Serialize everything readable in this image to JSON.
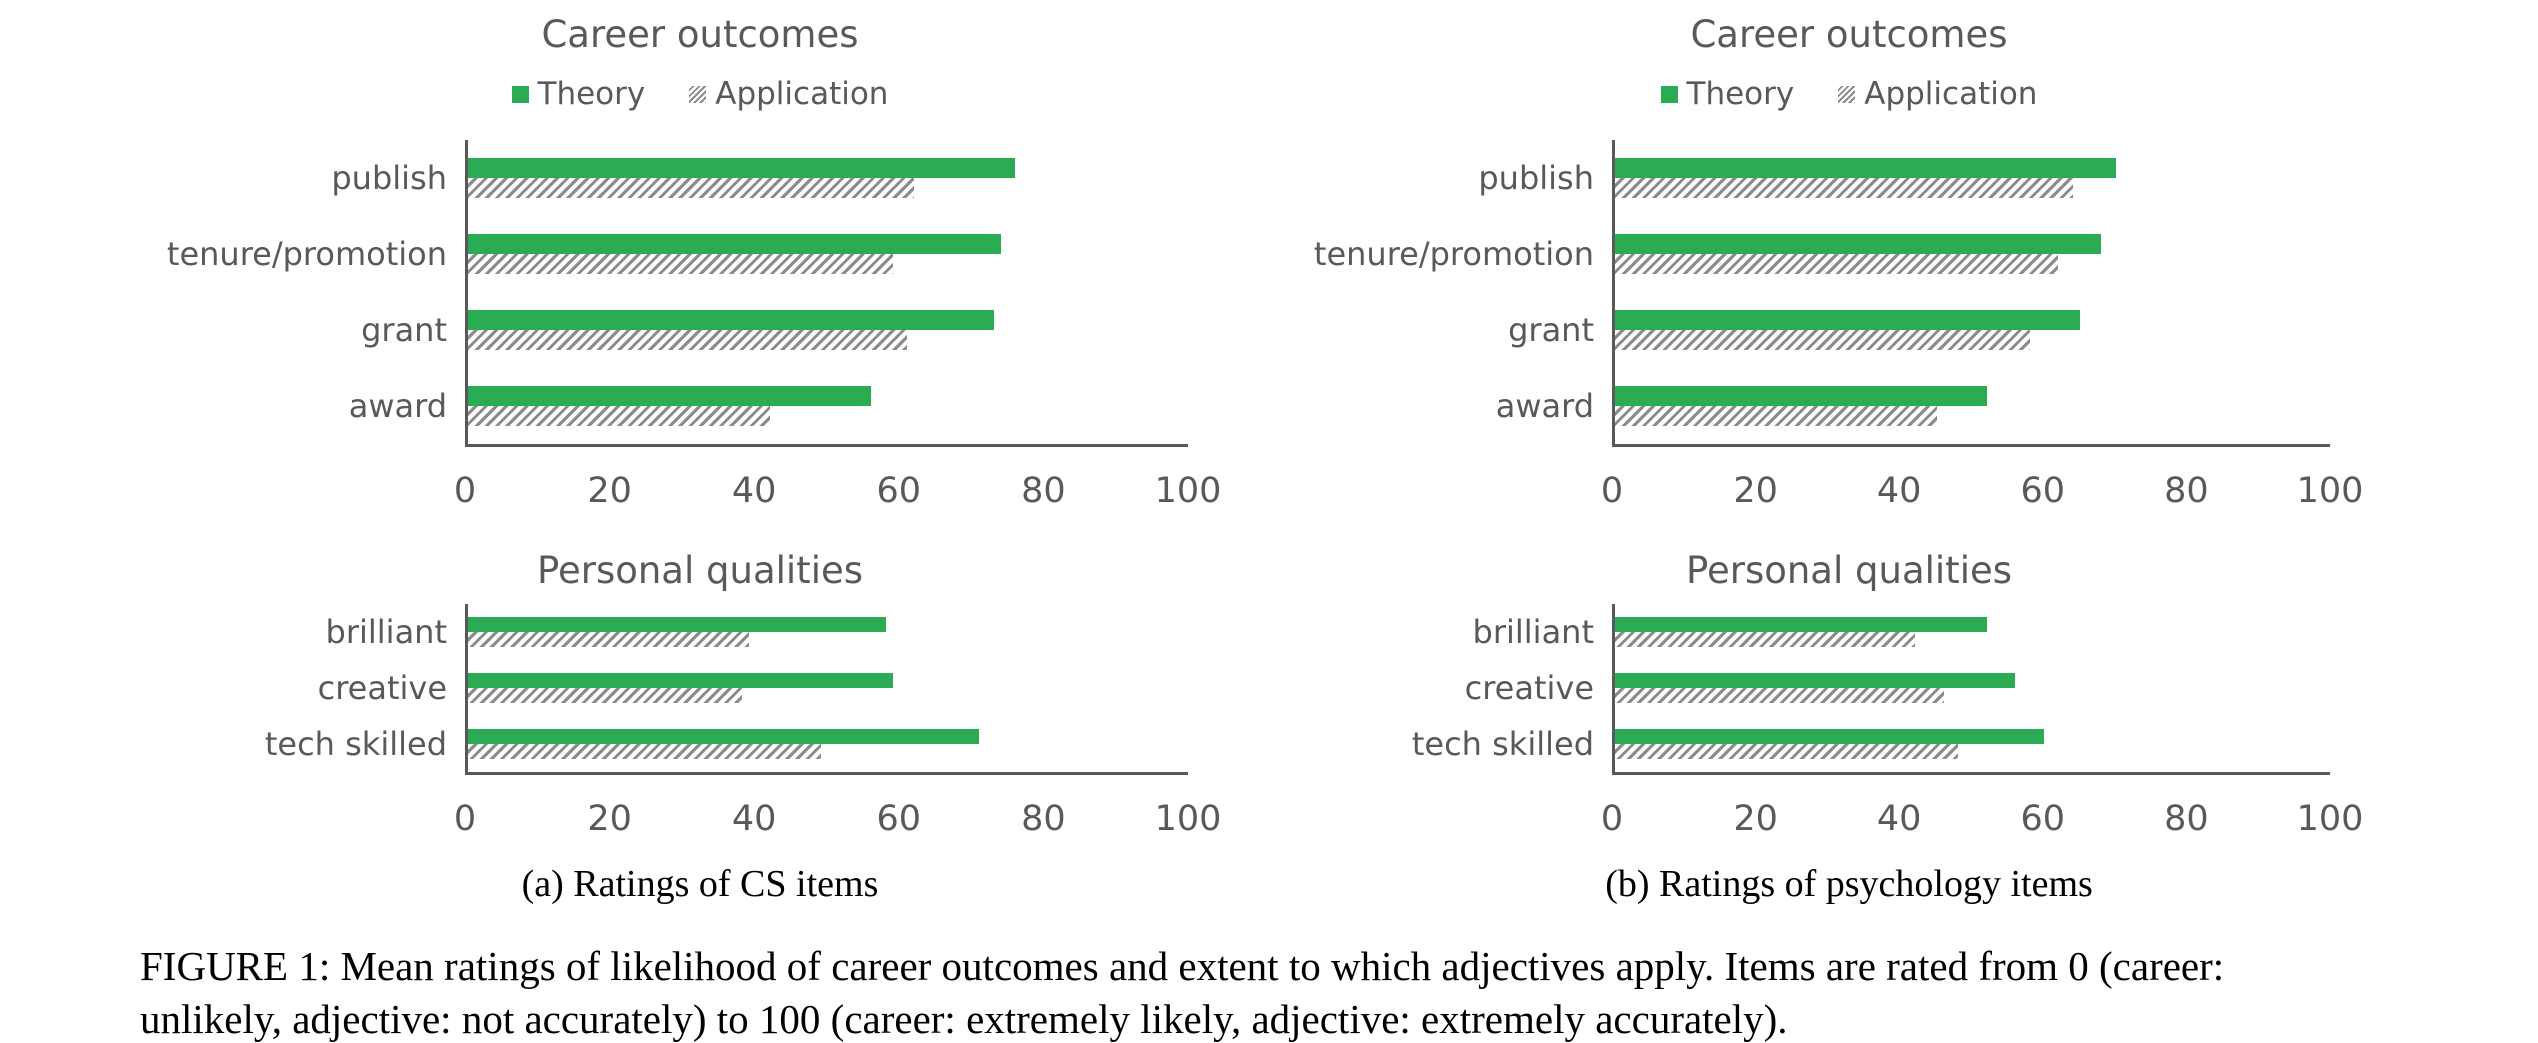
{
  "figure": {
    "panel_captions": {
      "a": "(a) Ratings of CS items",
      "b": "(b) Ratings of psychology items"
    },
    "caption_lines": {
      "line1": "FIGURE 1: Mean ratings of likelihood of career outcomes and extent to which adjectives apply. Items are rated from 0 (career:",
      "line2": "unlikely, adjective: not accurately) to 100 (career: extremely likely, adjective: extremely accurately)."
    }
  },
  "colors": {
    "theory": "#2bab54",
    "application_hatch": "#8b8b8b",
    "axis": "#595959",
    "text": "#595959"
  },
  "legend": {
    "items": [
      {
        "label": "Theory",
        "style": "solid"
      },
      {
        "label": "Application",
        "style": "hatched"
      }
    ]
  },
  "chart_data": [
    {
      "id": "career-outcomes-cs",
      "panel": "a",
      "type": "bar",
      "orientation": "horizontal",
      "title": "Career outcomes",
      "categories": [
        "publish",
        "tenure/promotion",
        "grant",
        "award"
      ],
      "series": [
        {
          "name": "Theory",
          "values": [
            76,
            74,
            73,
            56
          ]
        },
        {
          "name": "Application",
          "values": [
            62,
            59,
            61,
            42
          ]
        }
      ],
      "xlim": [
        0,
        100
      ],
      "xticks": [
        0,
        20,
        40,
        60,
        80,
        100
      ],
      "grid": false,
      "legend_visible": true,
      "legend_position": "top-center"
    },
    {
      "id": "career-outcomes-psychology",
      "panel": "b",
      "type": "bar",
      "orientation": "horizontal",
      "title": "Career outcomes",
      "categories": [
        "publish",
        "tenure/promotion",
        "grant",
        "award"
      ],
      "series": [
        {
          "name": "Theory",
          "values": [
            70,
            68,
            65,
            52
          ]
        },
        {
          "name": "Application",
          "values": [
            64,
            62,
            58,
            45
          ]
        }
      ],
      "xlim": [
        0,
        100
      ],
      "xticks": [
        0,
        20,
        40,
        60,
        80,
        100
      ],
      "grid": false,
      "legend_visible": true,
      "legend_position": "top-center"
    },
    {
      "id": "personal-qualities-cs",
      "panel": "a",
      "type": "bar",
      "orientation": "horizontal",
      "title": "Personal qualities",
      "categories": [
        "brilliant",
        "creative",
        "tech skilled"
      ],
      "series": [
        {
          "name": "Theory",
          "values": [
            58,
            59,
            71
          ]
        },
        {
          "name": "Application",
          "values": [
            39,
            38,
            49
          ]
        }
      ],
      "xlim": [
        0,
        100
      ],
      "xticks": [
        0,
        20,
        40,
        60,
        80,
        100
      ],
      "grid": false,
      "legend_visible": false
    },
    {
      "id": "personal-qualities-psychology",
      "panel": "b",
      "type": "bar",
      "orientation": "horizontal",
      "title": "Personal qualities",
      "categories": [
        "brilliant",
        "creative",
        "tech skilled"
      ],
      "series": [
        {
          "name": "Theory",
          "values": [
            52,
            56,
            60
          ]
        },
        {
          "name": "Application",
          "values": [
            42,
            46,
            48
          ]
        }
      ],
      "xlim": [
        0,
        100
      ],
      "xticks": [
        0,
        20,
        40,
        60,
        80,
        100
      ],
      "grid": false,
      "legend_visible": false
    }
  ]
}
